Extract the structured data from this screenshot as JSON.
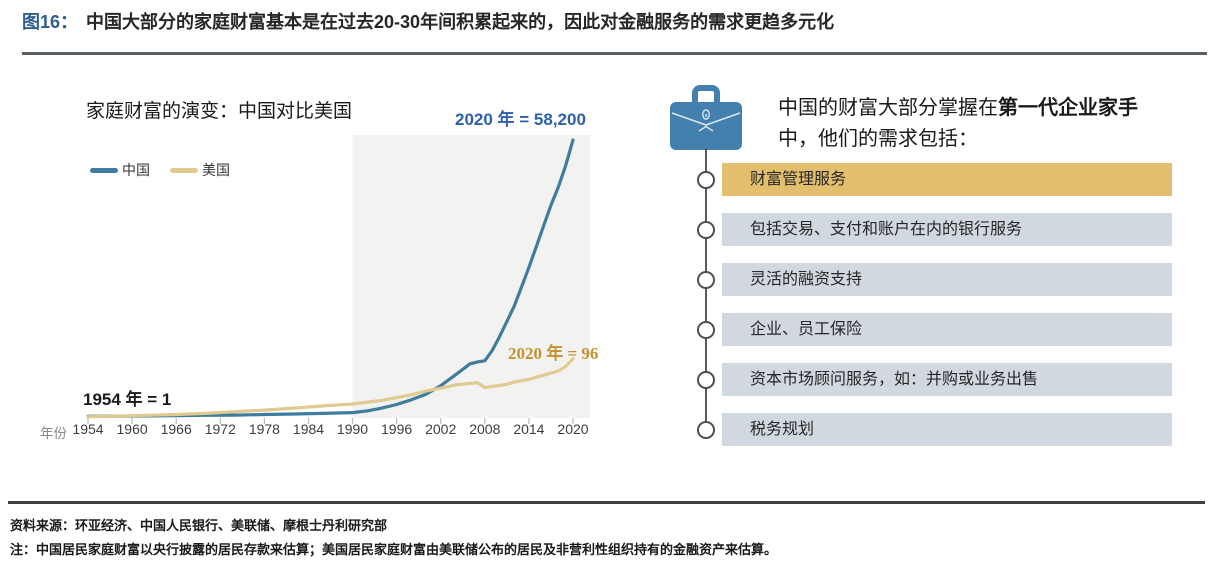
{
  "header": {
    "figure_label": "图16：",
    "title": "中国大部分的家庭财富基本是在过去20-30年间积累起来的，因此对金融服务的需求更趋多元化"
  },
  "colors": {
    "fig_label_blue": "#2e5e8e",
    "anno_blue": "#2e5fae",
    "anno_gold": "#c3922e",
    "china_line": "#3e7d9e",
    "us_line": "#e0ca90",
    "shade": "#f2f2f0",
    "bar_gold": "#e3bf6d",
    "bar_gray": "#d2d8e0",
    "brief_blue": "#4380ad",
    "rule_top": "#575f63",
    "rule_dark": "#404040"
  },
  "chart": {
    "title": "家庭财富的演变：中国对比美国",
    "axis_prefix": "年份",
    "legend": [
      {
        "label": "中国",
        "color": "#3e7d9e"
      },
      {
        "label": "美国",
        "color": "#e0ca90"
      }
    ],
    "annotations": {
      "china_end": "2020 年 = 58,200",
      "us_end": "2020 年 = 96",
      "start": "1954 年 = 1"
    }
  },
  "chart_data": {
    "type": "line",
    "title": "家庭财富的演变：中国对比美国",
    "x_label": "年份",
    "x_range": [
      1954,
      2020
    ],
    "x_tick_years": [
      1954,
      1960,
      1966,
      1972,
      1978,
      1984,
      1990,
      1996,
      2002,
      2008,
      2014,
      2020
    ],
    "y_axis": "家庭财富指数（1954 年 = 1），纵轴刻度未在图中标注",
    "legend_position": "top-left",
    "grid": false,
    "shaded_region": {
      "from_year": 1990,
      "to_year": 2022
    },
    "value_labels": {
      "start_1954": "1",
      "china_2020": "58,200",
      "us_2020": "96"
    },
    "series": [
      {
        "name": "中国",
        "color": "#3e7d9e",
        "end_value_label": "58,200",
        "points_rel_height": [
          [
            1954,
            0.003
          ],
          [
            1958,
            0.003
          ],
          [
            1962,
            0.004
          ],
          [
            1966,
            0.005
          ],
          [
            1970,
            0.006
          ],
          [
            1974,
            0.007
          ],
          [
            1978,
            0.009
          ],
          [
            1982,
            0.011
          ],
          [
            1986,
            0.013
          ],
          [
            1990,
            0.016
          ],
          [
            1992,
            0.022
          ],
          [
            1994,
            0.032
          ],
          [
            1996,
            0.045
          ],
          [
            1998,
            0.062
          ],
          [
            2000,
            0.082
          ],
          [
            2002,
            0.113
          ],
          [
            2004,
            0.152
          ],
          [
            2006,
            0.192
          ],
          [
            2007,
            0.199
          ],
          [
            2008,
            0.203
          ],
          [
            2009,
            0.24
          ],
          [
            2010,
            0.29
          ],
          [
            2011,
            0.345
          ],
          [
            2012,
            0.4
          ],
          [
            2013,
            0.47
          ],
          [
            2014,
            0.54
          ],
          [
            2015,
            0.615
          ],
          [
            2016,
            0.69
          ],
          [
            2017,
            0.765
          ],
          [
            2018,
            0.83
          ],
          [
            2019,
            0.908
          ],
          [
            2020,
            1.0
          ]
        ]
      },
      {
        "name": "美国",
        "color": "#e0ca90",
        "end_value_label": "96",
        "points_rel_height": [
          [
            1954,
            0.001
          ],
          [
            1958,
            0.003
          ],
          [
            1962,
            0.006
          ],
          [
            1966,
            0.009
          ],
          [
            1970,
            0.013
          ],
          [
            1974,
            0.019
          ],
          [
            1978,
            0.025
          ],
          [
            1982,
            0.032
          ],
          [
            1986,
            0.04
          ],
          [
            1990,
            0.047
          ],
          [
            1994,
            0.06
          ],
          [
            1996,
            0.07
          ],
          [
            1998,
            0.08
          ],
          [
            2000,
            0.094
          ],
          [
            2002,
            0.104
          ],
          [
            2004,
            0.116
          ],
          [
            2006,
            0.121
          ],
          [
            2007,
            0.124
          ],
          [
            2008,
            0.106
          ],
          [
            2009,
            0.11
          ],
          [
            2010,
            0.114
          ],
          [
            2011,
            0.118
          ],
          [
            2012,
            0.126
          ],
          [
            2014,
            0.136
          ],
          [
            2016,
            0.151
          ],
          [
            2018,
            0.166
          ],
          [
            2019,
            0.183
          ],
          [
            2020,
            0.21
          ]
        ]
      }
    ]
  },
  "right_panel": {
    "icon": "briefcase-icon",
    "header": {
      "pre": "中国的财富大部分掌握在",
      "bold": "第一代企业家手",
      "line2": "中，他们的需求包括："
    },
    "items": [
      {
        "label": "财富管理服务",
        "highlight": true
      },
      {
        "label": "包括交易、支付和账户在内的银行服务",
        "highlight": false
      },
      {
        "label": "灵活的融资支持",
        "highlight": false
      },
      {
        "label": "企业、员工保险",
        "highlight": false
      },
      {
        "label": "资本市场顾问服务，如：并购或业务出售",
        "highlight": false
      },
      {
        "label": "税务规划",
        "highlight": false
      }
    ]
  },
  "footer": {
    "source": "资料来源：环亚经济、中国人民银行、美联储、摩根士丹利研究部",
    "note": "注：中国居民家庭财富以央行披露的居民存款来估算；美国居民家庭财富由美联储公布的居民及非营利性组织持有的金融资产来估算。"
  }
}
